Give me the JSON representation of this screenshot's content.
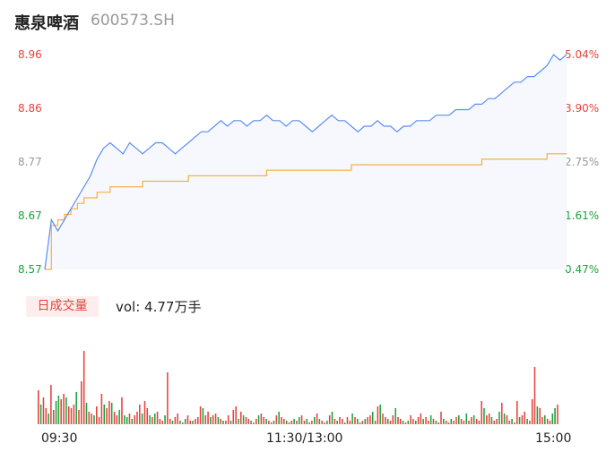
{
  "header": {
    "name": "惠泉啤酒",
    "code": "600573.SH"
  },
  "colors": {
    "up": "#e8413c",
    "down": "#1aa33b",
    "neutral": "#999999",
    "price": "#5b8def",
    "avg": "#f5b13d",
    "fill": "#f6f8fe"
  },
  "y_axis_left": [
    "8.96",
    "8.86",
    "8.77",
    "8.67",
    "8.57"
  ],
  "y_axis_right": [
    "5.04%",
    "3.90%",
    "2.75%",
    "1.61%",
    "0.47%"
  ],
  "volume": {
    "badge": "日成交量",
    "label": "vol: 4.77万手"
  },
  "x_axis": [
    "09:30",
    "11:30/13:00",
    "15:00"
  ],
  "chart_data": [
    {
      "type": "line",
      "title": "",
      "ylim": [
        8.57,
        8.96
      ],
      "x_ticks": [
        "09:30",
        "11:30/13:00",
        "15:00"
      ],
      "series": [
        {
          "values": [
            8.57,
            8.66,
            8.64,
            8.66,
            8.68,
            8.7,
            8.72,
            8.74,
            8.77,
            8.79,
            8.8,
            8.79,
            8.78,
            8.8,
            8.79,
            8.78,
            8.79,
            8.8,
            8.8,
            8.79,
            8.78,
            8.79,
            8.8,
            8.81,
            8.82,
            8.82,
            8.83,
            8.84,
            8.83,
            8.84,
            8.84,
            8.83,
            8.84,
            8.84,
            8.85,
            8.84,
            8.84,
            8.83,
            8.84,
            8.84,
            8.83,
            8.82,
            8.83,
            8.84,
            8.85,
            8.84,
            8.84,
            8.83,
            8.82,
            8.83,
            8.83,
            8.84,
            8.83,
            8.83,
            8.82,
            8.83,
            8.83,
            8.84,
            8.84,
            8.84,
            8.85,
            8.85,
            8.85,
            8.86,
            8.86,
            8.86,
            8.87,
            8.87,
            8.88,
            8.88,
            8.89,
            8.9,
            8.91,
            8.91,
            8.92,
            8.92,
            8.93,
            8.94,
            8.96,
            8.95,
            8.96
          ]
        },
        {
          "values": [
            8.57,
            8.65,
            8.66,
            8.67,
            8.68,
            8.69,
            8.7,
            8.7,
            8.71,
            8.71,
            8.72,
            8.72,
            8.72,
            8.72,
            8.72,
            8.73,
            8.73,
            8.73,
            8.73,
            8.73,
            8.73,
            8.73,
            8.74,
            8.74,
            8.74,
            8.74,
            8.74,
            8.74,
            8.74,
            8.74,
            8.74,
            8.74,
            8.74,
            8.74,
            8.75,
            8.75,
            8.75,
            8.75,
            8.75,
            8.75,
            8.75,
            8.75,
            8.75,
            8.75,
            8.75,
            8.75,
            8.75,
            8.76,
            8.76,
            8.76,
            8.76,
            8.76,
            8.76,
            8.76,
            8.76,
            8.76,
            8.76,
            8.76,
            8.76,
            8.76,
            8.76,
            8.76,
            8.76,
            8.76,
            8.76,
            8.76,
            8.76,
            8.77,
            8.77,
            8.77,
            8.77,
            8.77,
            8.77,
            8.77,
            8.77,
            8.77,
            8.77,
            8.78,
            8.78,
            8.78,
            8.78
          ]
        }
      ]
    },
    {
      "type": "bar",
      "title": "",
      "ylim": [
        0,
        110
      ],
      "values": [
        38,
        22,
        30,
        18,
        12,
        44,
        16,
        26,
        32,
        28,
        34,
        30,
        20,
        18,
        22,
        36,
        16,
        48,
        82,
        24,
        14,
        12,
        10,
        20,
        8,
        34,
        22,
        18,
        26,
        24,
        14,
        10,
        16,
        30,
        10,
        8,
        12,
        6,
        10,
        14,
        22,
        12,
        26,
        18,
        10,
        8,
        12,
        14,
        6,
        4,
        10,
        58,
        6,
        4,
        8,
        12,
        4,
        2,
        6,
        10,
        4,
        4,
        6,
        8,
        20,
        18,
        10,
        14,
        8,
        10,
        12,
        8,
        6,
        4,
        4,
        10,
        4,
        16,
        20,
        6,
        14,
        10,
        8,
        6,
        4,
        2,
        6,
        10,
        12,
        8,
        6,
        4,
        2,
        4,
        10,
        14,
        8,
        6,
        4,
        2,
        4,
        6,
        4,
        8,
        10,
        4,
        6,
        2,
        4,
        8,
        12,
        6,
        4,
        2,
        4,
        10,
        14,
        6,
        4,
        8,
        6,
        2,
        8,
        4,
        12,
        8,
        6,
        2,
        4,
        6,
        8,
        10,
        14,
        4,
        20,
        22,
        12,
        8,
        6,
        4,
        10,
        18,
        8,
        6,
        4,
        2,
        4,
        10,
        6,
        4,
        8,
        12,
        6,
        8,
        4,
        10,
        6,
        4,
        2,
        14,
        6,
        4,
        2,
        6,
        4,
        8,
        10,
        6,
        4,
        12,
        4,
        8,
        10,
        6,
        4,
        26,
        18,
        10,
        12,
        8,
        4,
        6,
        14,
        24,
        12,
        10,
        4,
        6,
        2,
        26,
        8,
        10,
        14,
        6,
        4,
        28,
        64,
        20,
        18,
        8,
        10,
        6,
        4,
        12,
        18,
        22
      ],
      "dirs": [
        "u",
        "d",
        "u",
        "u",
        "d",
        "u",
        "u",
        "d",
        "d",
        "u",
        "u",
        "d",
        "u",
        "u",
        "u",
        "d",
        "u",
        "u",
        "u",
        "d",
        "u",
        "u",
        "d",
        "u",
        "u",
        "u",
        "d",
        "u",
        "u",
        "d",
        "u",
        "u",
        "d",
        "u",
        "d",
        "d",
        "u",
        "d",
        "u",
        "u",
        "u",
        "d",
        "u",
        "u",
        "d",
        "u",
        "d",
        "u",
        "u",
        "u",
        "d",
        "u",
        "u",
        "d",
        "u",
        "u",
        "d",
        "u",
        "d",
        "u",
        "u",
        "d",
        "u",
        "u",
        "u",
        "d",
        "u",
        "u",
        "d",
        "u",
        "u",
        "d",
        "u",
        "d",
        "u",
        "u",
        "d",
        "u",
        "u",
        "d",
        "u",
        "d",
        "u",
        "u",
        "d",
        "u",
        "u",
        "d",
        "u",
        "u",
        "d",
        "u",
        "u",
        "d",
        "u",
        "d",
        "u",
        "u",
        "d",
        "u",
        "u",
        "d",
        "u",
        "d",
        "u",
        "u",
        "d",
        "u",
        "u",
        "d",
        "u",
        "d",
        "u",
        "u",
        "d",
        "u",
        "d",
        "u",
        "d",
        "u",
        "u",
        "d",
        "u",
        "u",
        "d",
        "u",
        "d",
        "u",
        "u",
        "d",
        "u",
        "u",
        "d",
        "u",
        "u",
        "d",
        "u",
        "u",
        "d",
        "u",
        "u",
        "d",
        "u",
        "u",
        "d",
        "u",
        "d",
        "u",
        "u",
        "d",
        "u",
        "u",
        "d",
        "u",
        "u",
        "d",
        "u",
        "d",
        "u",
        "u",
        "d",
        "u",
        "u",
        "d",
        "u",
        "u",
        "d",
        "u",
        "u",
        "d",
        "u",
        "u",
        "d",
        "u",
        "u",
        "u",
        "d",
        "u",
        "u",
        "d",
        "u",
        "u",
        "d",
        "u",
        "d",
        "u",
        "u",
        "d",
        "u",
        "u",
        "d",
        "u",
        "u",
        "d",
        "u",
        "u",
        "u",
        "d",
        "u",
        "u",
        "d",
        "u",
        "u",
        "d",
        "d",
        "u",
        "u",
        "d"
      ]
    }
  ]
}
